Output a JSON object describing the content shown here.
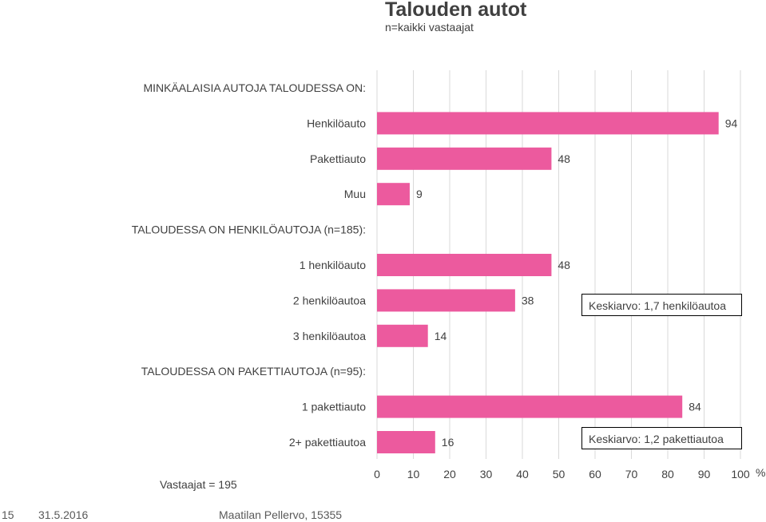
{
  "title": "Talouden autot",
  "subtitle": "n=kaikki vastaajat",
  "chart_data": {
    "type": "bar",
    "orientation": "horizontal",
    "xlim": [
      0,
      100
    ],
    "xticks": [
      0,
      10,
      20,
      30,
      40,
      50,
      60,
      70,
      80,
      90,
      100
    ],
    "unit": "%",
    "grid": true,
    "rows": [
      {
        "kind": "group",
        "label": "MINKÄALAISIA AUTOJA TALOUDESSA ON:"
      },
      {
        "kind": "bar",
        "label": "Henkilöauto",
        "value": 94
      },
      {
        "kind": "bar",
        "label": "Pakettiauto",
        "value": 48
      },
      {
        "kind": "bar",
        "label": "Muu",
        "value": 9
      },
      {
        "kind": "group",
        "label": "TALOUDESSA ON HENKILÖAUTOJA (n=185):"
      },
      {
        "kind": "bar",
        "label": "1 henkilöauto",
        "value": 48
      },
      {
        "kind": "bar",
        "label": "2 henkilöautoa",
        "value": 38
      },
      {
        "kind": "bar",
        "label": "3 henkilöautoa",
        "value": 14
      },
      {
        "kind": "group",
        "label": "TALOUDESSA ON PAKETTIAUTOJA (n=95):"
      },
      {
        "kind": "bar",
        "label": "1 pakettiauto",
        "value": 84
      },
      {
        "kind": "bar",
        "label": "2+ pakettiautoa",
        "value": 16
      }
    ],
    "bar_color": "#EC5A9E",
    "annotations": [
      "Keskiarvo: 1,7 henkilöautoa",
      "Keskiarvo: 1,2 pakettiautoa"
    ]
  },
  "respondents": "Vastaajat = 195",
  "footer": {
    "page": "15",
    "date": "31.5.2016",
    "source": "Maatilan Pellervo, 15355"
  }
}
